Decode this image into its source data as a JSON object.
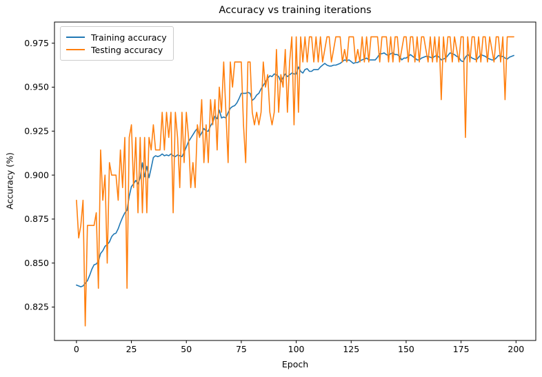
{
  "figure": {
    "background": "#ffffff"
  },
  "chart_data": {
    "type": "line",
    "title": "Accuracy vs training iterations",
    "xlabel": "Epoch",
    "ylabel": "Accuracy (%)",
    "xlim": [
      -10,
      209
    ],
    "ylim": [
      0.806,
      0.987
    ],
    "x_ticks": [
      0,
      25,
      50,
      75,
      100,
      125,
      150,
      175,
      200
    ],
    "x_tick_labels": [
      "0",
      "25",
      "50",
      "75",
      "100",
      "125",
      "150",
      "175",
      "200"
    ],
    "y_ticks": [
      0.825,
      0.85,
      0.875,
      0.9,
      0.925,
      0.95,
      0.975
    ],
    "y_tick_labels": [
      "0.825",
      "0.850",
      "0.875",
      "0.900",
      "0.925",
      "0.950",
      "0.975"
    ],
    "grid": false,
    "legend": {
      "position": "upper-left"
    },
    "x_start": 0,
    "x_step": 1,
    "series": [
      {
        "name": "Training accuracy",
        "color": "#1f77b4",
        "values": [
          0.8375,
          0.837,
          0.8365,
          0.837,
          0.8385,
          0.84,
          0.843,
          0.8465,
          0.849,
          0.8495,
          0.851,
          0.8555,
          0.857,
          0.8595,
          0.8605,
          0.862,
          0.865,
          0.8665,
          0.867,
          0.8695,
          0.873,
          0.876,
          0.8785,
          0.88,
          0.888,
          0.8935,
          0.895,
          0.897,
          0.895,
          0.8985,
          0.907,
          0.899,
          0.905,
          0.8985,
          0.904,
          0.91,
          0.911,
          0.9105,
          0.911,
          0.912,
          0.911,
          0.9115,
          0.911,
          0.912,
          0.911,
          0.9105,
          0.9115,
          0.911,
          0.9105,
          0.913,
          0.916,
          0.919,
          0.921,
          0.923,
          0.925,
          0.9265,
          0.922,
          0.924,
          0.9265,
          0.925,
          0.925,
          0.928,
          0.93,
          0.9335,
          0.932,
          0.937,
          0.9325,
          0.933,
          0.9325,
          0.9355,
          0.938,
          0.939,
          0.9395,
          0.941,
          0.9435,
          0.9465,
          0.9465,
          0.9465,
          0.947,
          0.9465,
          0.9425,
          0.9435,
          0.9455,
          0.9465,
          0.949,
          0.951,
          0.953,
          0.955,
          0.9565,
          0.956,
          0.9575,
          0.957,
          0.956,
          0.953,
          0.9555,
          0.9575,
          0.956,
          0.957,
          0.958,
          0.9575,
          0.9575,
          0.9615,
          0.959,
          0.958,
          0.96,
          0.9605,
          0.959,
          0.959,
          0.96,
          0.96,
          0.96,
          0.9615,
          0.9625,
          0.9635,
          0.9625,
          0.962,
          0.962,
          0.9625,
          0.9625,
          0.963,
          0.9635,
          0.9645,
          0.9655,
          0.965,
          0.9655,
          0.9645,
          0.9635,
          0.964,
          0.964,
          0.965,
          0.9655,
          0.966,
          0.9665,
          0.9655,
          0.9655,
          0.9655,
          0.9655,
          0.967,
          0.969,
          0.969,
          0.9695,
          0.9685,
          0.968,
          0.969,
          0.9695,
          0.9685,
          0.9685,
          0.9675,
          0.9655,
          0.9665,
          0.9665,
          0.9675,
          0.9685,
          0.9675,
          0.9665,
          0.9655,
          0.9655,
          0.9665,
          0.967,
          0.9675,
          0.9675,
          0.967,
          0.9665,
          0.9675,
          0.968,
          0.967,
          0.9655,
          0.966,
          0.9665,
          0.968,
          0.9695,
          0.969,
          0.9685,
          0.9675,
          0.967,
          0.965,
          0.9645,
          0.967,
          0.9685,
          0.9675,
          0.9665,
          0.966,
          0.9655,
          0.967,
          0.9685,
          0.968,
          0.9675,
          0.9665,
          0.966,
          0.9655,
          0.9655,
          0.9665,
          0.968,
          0.9675,
          0.9675,
          0.9665,
          0.966,
          0.967,
          0.9675,
          0.968
        ]
      },
      {
        "name": "Testing accuracy",
        "color": "#ff7f0e",
        "values": [
          0.8857,
          0.8643,
          0.8714,
          0.8857,
          0.8143,
          0.8714,
          0.8714,
          0.8714,
          0.8714,
          0.8786,
          0.8357,
          0.9143,
          0.8857,
          0.9,
          0.85,
          0.9071,
          0.9,
          0.9,
          0.9,
          0.8857,
          0.9143,
          0.8929,
          0.9214,
          0.8357,
          0.9214,
          0.9286,
          0.8929,
          0.9214,
          0.8786,
          0.9214,
          0.8786,
          0.9214,
          0.8786,
          0.9214,
          0.9143,
          0.9286,
          0.9143,
          0.9143,
          0.9143,
          0.9357,
          0.9143,
          0.9357,
          0.9214,
          0.9357,
          0.8786,
          0.9357,
          0.9214,
          0.8929,
          0.9357,
          0.9071,
          0.9357,
          0.9214,
          0.8929,
          0.9071,
          0.8929,
          0.9286,
          0.9214,
          0.9429,
          0.9071,
          0.9286,
          0.9071,
          0.9429,
          0.9286,
          0.9429,
          0.9143,
          0.95,
          0.9357,
          0.9643,
          0.9357,
          0.9071,
          0.9643,
          0.95,
          0.9643,
          0.9643,
          0.9643,
          0.9643,
          0.9286,
          0.9071,
          0.9643,
          0.9643,
          0.9357,
          0.9286,
          0.9357,
          0.9286,
          0.9357,
          0.9643,
          0.95,
          0.9571,
          0.9357,
          0.9286,
          0.9357,
          0.9714,
          0.9357,
          0.9571,
          0.95,
          0.9714,
          0.9357,
          0.9643,
          0.9786,
          0.9286,
          0.9786,
          0.9357,
          0.9786,
          0.9643,
          0.9786,
          0.9643,
          0.9786,
          0.9786,
          0.9643,
          0.9786,
          0.9643,
          0.9786,
          0.9643,
          0.9714,
          0.9786,
          0.9786,
          0.9643,
          0.9714,
          0.9786,
          0.9786,
          0.9786,
          0.9643,
          0.9714,
          0.9643,
          0.9786,
          0.9786,
          0.9786,
          0.9643,
          0.9714,
          0.9643,
          0.9786,
          0.9643,
          0.9786,
          0.9643,
          0.9786,
          0.9786,
          0.9786,
          0.9786,
          0.9643,
          0.9786,
          0.9786,
          0.9786,
          0.9643,
          0.9786,
          0.9643,
          0.9786,
          0.9786,
          0.9643,
          0.9714,
          0.9786,
          0.9786,
          0.9643,
          0.9786,
          0.9786,
          0.9643,
          0.9786,
          0.9643,
          0.9786,
          0.9786,
          0.9714,
          0.9643,
          0.9786,
          0.9643,
          0.9786,
          0.9643,
          0.9786,
          0.9429,
          0.9786,
          0.9643,
          0.9786,
          0.9786,
          0.9643,
          0.9786,
          0.9714,
          0.9643,
          0.9786,
          0.9786,
          0.9214,
          0.9786,
          0.9643,
          0.9786,
          0.9786,
          0.9643,
          0.9786,
          0.9643,
          0.9786,
          0.9786,
          0.9643,
          0.9786,
          0.9714,
          0.9643,
          0.9786,
          0.9786,
          0.9643,
          0.9786,
          0.9429,
          0.9786,
          0.9786,
          0.9786,
          0.9786
        ]
      }
    ]
  }
}
